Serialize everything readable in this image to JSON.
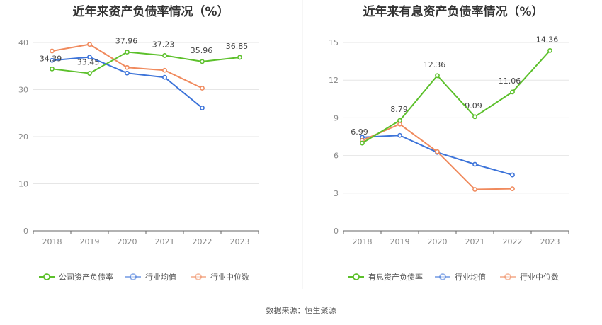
{
  "footer": {
    "source": "数据来源：恒生聚源"
  },
  "chart_data": [
    {
      "type": "line",
      "title": "近年来资产负债率情况（%）",
      "xlabel": "",
      "ylabel": "",
      "categories": [
        "2018",
        "2019",
        "2020",
        "2021",
        "2022",
        "2023"
      ],
      "ylim": [
        0,
        40
      ],
      "yticks": [
        0,
        10,
        20,
        30,
        40
      ],
      "grid": true,
      "legend_position": "bottom",
      "series": [
        {
          "name": "公司资产负债率",
          "color": "#5cc02b",
          "values": [
            34.39,
            33.45,
            37.96,
            37.23,
            35.96,
            36.85
          ],
          "labels": [
            "34.39",
            "33.45",
            "37.96",
            "37.23",
            "35.96",
            "36.85"
          ]
        },
        {
          "name": "行业均值",
          "color": "#3d74d9",
          "values": [
            36.2,
            36.9,
            33.5,
            32.6,
            26.1,
            null
          ]
        },
        {
          "name": "行业中位数",
          "color": "#f08a5d",
          "values": [
            38.2,
            39.6,
            34.7,
            34.1,
            30.3,
            null
          ]
        }
      ]
    },
    {
      "type": "line",
      "title": "近年来有息资产负债率情况（%）",
      "xlabel": "",
      "ylabel": "",
      "categories": [
        "2018",
        "2019",
        "2020",
        "2021",
        "2022",
        "2023"
      ],
      "ylim": [
        0,
        15
      ],
      "yticks": [
        0,
        3,
        6,
        9,
        12,
        15
      ],
      "grid": true,
      "legend_position": "bottom",
      "series": [
        {
          "name": "有息资产负债率",
          "color": "#5cc02b",
          "values": [
            6.99,
            8.79,
            12.36,
            9.09,
            11.06,
            14.36
          ],
          "labels": [
            "6.99",
            "8.79",
            "12.36",
            "9.09",
            "11.06",
            "14.36"
          ]
        },
        {
          "name": "行业均值",
          "color": "#3d74d9",
          "values": [
            7.45,
            7.6,
            6.25,
            5.3,
            4.45,
            null
          ]
        },
        {
          "name": "行业中位数",
          "color": "#f08a5d",
          "values": [
            7.2,
            8.5,
            6.3,
            3.3,
            3.35,
            null
          ]
        }
      ]
    }
  ]
}
